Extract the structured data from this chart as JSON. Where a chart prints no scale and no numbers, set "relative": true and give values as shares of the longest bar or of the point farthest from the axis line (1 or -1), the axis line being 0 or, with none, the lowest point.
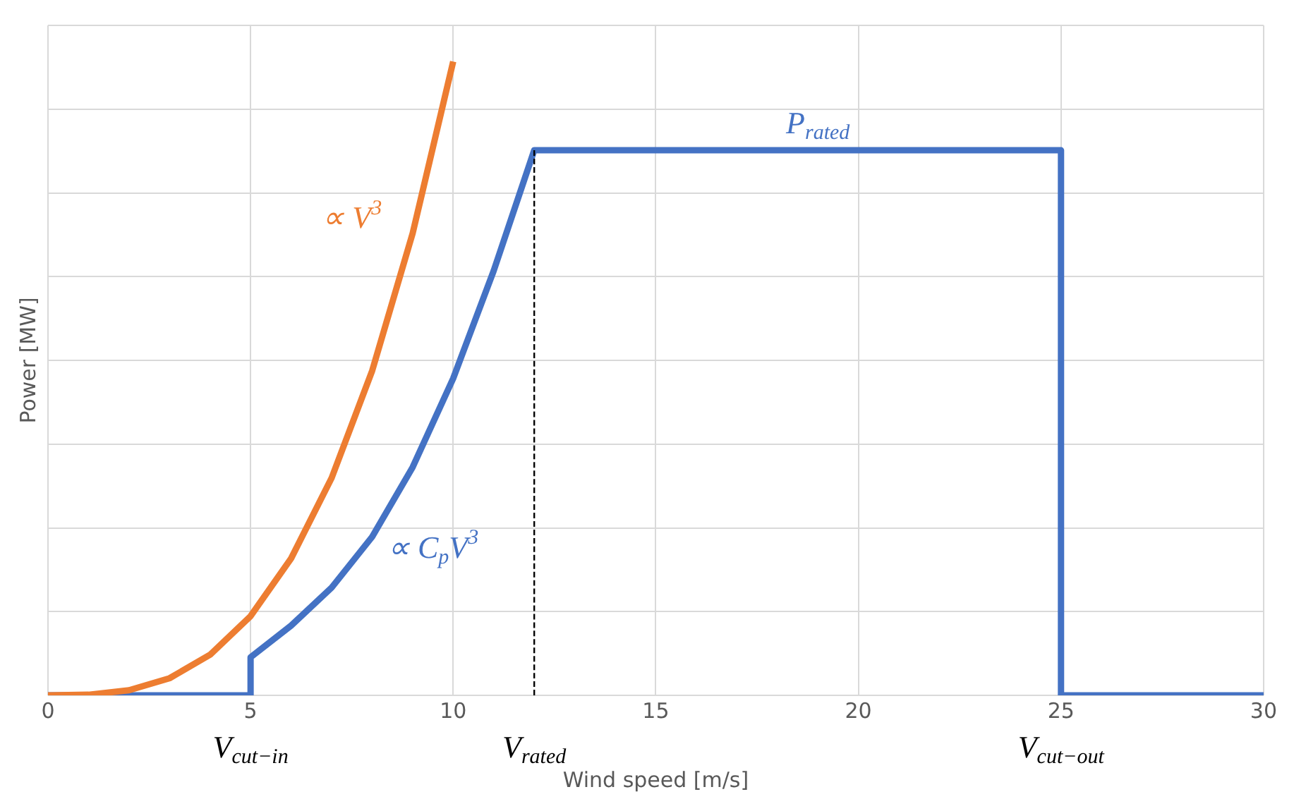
{
  "chart_data": {
    "type": "line",
    "relative": true,
    "xlabel": "Wind speed [m/s]",
    "ylabel": "Power [MW]",
    "xlim": [
      0,
      30
    ],
    "xticks": [
      0,
      5,
      10,
      15,
      20,
      25,
      30
    ],
    "grid": true,
    "legend": false,
    "marker": "none",
    "series": [
      {
        "color": "#ed7d31",
        "x": [
          0,
          1,
          2,
          3,
          4,
          5,
          6,
          7,
          8,
          9,
          10
        ],
        "values": [
          0,
          0.001,
          0.008,
          0.027,
          0.064,
          0.125,
          0.216,
          0.343,
          0.512,
          0.729,
          1.0
        ]
      },
      {
        "color": "#4472c4",
        "x": [
          0,
          5,
          5,
          6,
          7,
          8,
          9,
          10,
          11,
          12,
          25,
          25,
          30
        ],
        "values": [
          0,
          0,
          0.06,
          0.11,
          0.17,
          0.25,
          0.36,
          0.5,
          0.67,
          0.86,
          0.86,
          0,
          0
        ]
      },
      {
        "color": "#000000",
        "line_style": "dashed",
        "x": [
          12,
          12
        ],
        "values": [
          0,
          0.86
        ]
      }
    ],
    "annotations": [
      "∝ V$^{3}$",
      "∝ C$_{p}$V$^{3}$",
      "P$_{rated}$",
      "V$_{cut−in}$",
      "V$_{rated}$",
      "V$_{cut−out}$"
    ]
  }
}
